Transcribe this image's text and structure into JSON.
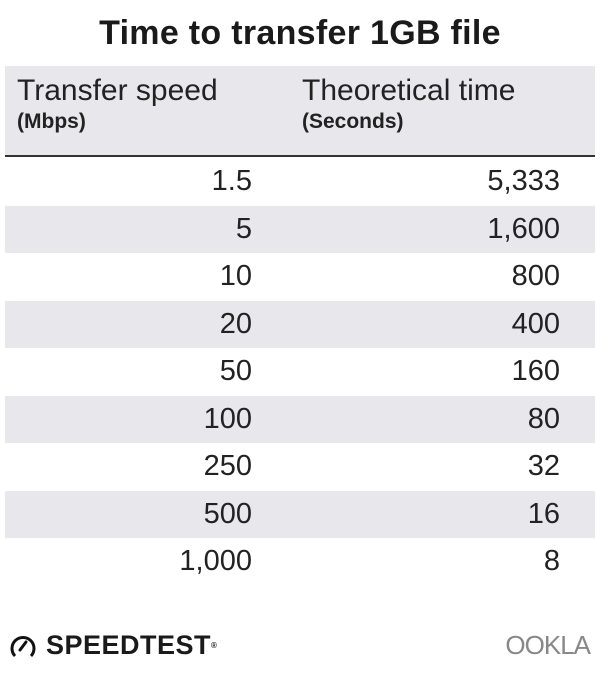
{
  "chart_data": {
    "type": "table",
    "title": "Time to transfer 1GB file",
    "columns": [
      {
        "label": "Transfer speed",
        "unit": "(Mbps)"
      },
      {
        "label": "Theoretical time",
        "unit": "(Seconds)"
      }
    ],
    "rows": [
      [
        "1.5",
        "5,333"
      ],
      [
        "5",
        "1,600"
      ],
      [
        "10",
        "800"
      ],
      [
        "20",
        "400"
      ],
      [
        "50",
        "160"
      ],
      [
        "100",
        "80"
      ],
      [
        "250",
        "32"
      ],
      [
        "500",
        "16"
      ],
      [
        "1,000",
        "8"
      ]
    ],
    "colors": {
      "header_bg": "#e8e8ec",
      "stripe": "#e8e8ec",
      "text": "#222222"
    }
  },
  "footer": {
    "brand": "SPEEDTEST",
    "brand_mark": "®",
    "partner": "OOKLA"
  }
}
